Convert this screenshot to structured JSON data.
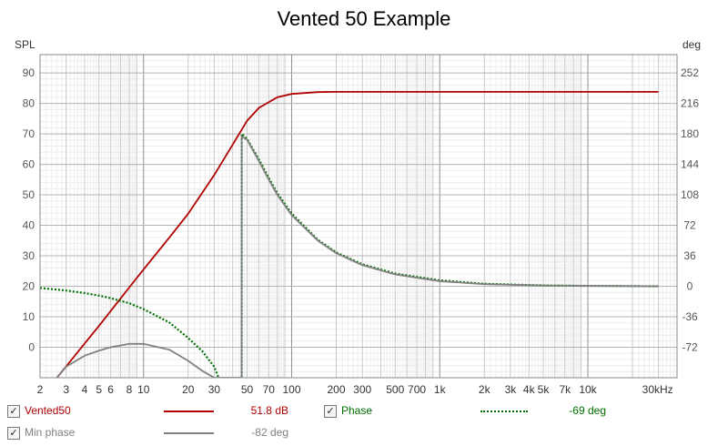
{
  "chart_data": {
    "type": "line",
    "title": "Vented 50 Example",
    "ylabel_left": "SPL",
    "ylabel_right": "deg",
    "xlabel_unit": "kHz",
    "x_scale": "log",
    "xlim": [
      2,
      40000
    ],
    "ylim_left": [
      -10,
      96
    ],
    "ylim_right": [
      -108,
      273.6
    ],
    "x_ticks": [
      {
        "v": 2,
        "t": "2"
      },
      {
        "v": 3,
        "t": "3"
      },
      {
        "v": 4,
        "t": "4"
      },
      {
        "v": 5,
        "t": "5"
      },
      {
        "v": 6,
        "t": "6"
      },
      {
        "v": 8,
        "t": "8"
      },
      {
        "v": 10,
        "t": "10"
      },
      {
        "v": 20,
        "t": "20"
      },
      {
        "v": 30,
        "t": "30"
      },
      {
        "v": 50,
        "t": "50"
      },
      {
        "v": 70,
        "t": "70"
      },
      {
        "v": 100,
        "t": "100"
      },
      {
        "v": 200,
        "t": "200"
      },
      {
        "v": 300,
        "t": "300"
      },
      {
        "v": 500,
        "t": "500"
      },
      {
        "v": 700,
        "t": "700"
      },
      {
        "v": 1000,
        "t": "1k"
      },
      {
        "v": 2000,
        "t": "2k"
      },
      {
        "v": 3000,
        "t": "3k"
      },
      {
        "v": 4000,
        "t": "4k"
      },
      {
        "v": 5000,
        "t": "5k"
      },
      {
        "v": 7000,
        "t": "7k"
      },
      {
        "v": 10000,
        "t": "10k"
      },
      {
        "v": 30000,
        "t": "30kHz"
      }
    ],
    "y_ticks_left": [
      0,
      10,
      20,
      30,
      40,
      50,
      60,
      70,
      80,
      90
    ],
    "y_ticks_right": [
      -72,
      -36,
      0,
      36,
      72,
      108,
      144,
      180,
      216,
      252
    ],
    "grid": true,
    "series": [
      {
        "name": "Vented50",
        "axis": "left",
        "color": "#b00000",
        "style": "solid",
        "x": [
          2.6,
          3,
          4,
          5,
          6,
          8,
          10,
          15,
          20,
          30,
          40,
          50,
          60,
          80,
          100,
          150,
          200,
          500,
          1000,
          5000,
          10000,
          30000
        ],
        "y": [
          -10,
          -6.3,
          1.2,
          7.0,
          11.9,
          19.6,
          25.5,
          36.1,
          43.8,
          56.5,
          66.5,
          74.3,
          78.5,
          82.0,
          83.1,
          83.7,
          83.8,
          83.8,
          83.8,
          83.8,
          83.8,
          83.8
        ]
      },
      {
        "name": "Phase",
        "axis": "right",
        "color": "#007000",
        "style": "dotted",
        "x": [
          2,
          3,
          4,
          5,
          6,
          8,
          10,
          15,
          20,
          25,
          30,
          35,
          40,
          46,
          46.01,
          50,
          60,
          70,
          80,
          100,
          150,
          200,
          300,
          500,
          1000,
          2000,
          5000,
          10000,
          30000
        ],
        "y": [
          -2,
          -5,
          -8,
          -11,
          -14,
          -20,
          -27,
          -43,
          -61,
          -77,
          -95,
          -125,
          -160,
          -185,
          180,
          174,
          150,
          128,
          110,
          86,
          55,
          40,
          26,
          15,
          7,
          3,
          1,
          0.5,
          0
        ]
      },
      {
        "name": "Min phase",
        "axis": "right",
        "color": "#808080",
        "style": "solid",
        "x": [
          2.6,
          3,
          4,
          5,
          6,
          8,
          10,
          15,
          20,
          25,
          30,
          32,
          45.9,
          46,
          50,
          60,
          70,
          80,
          100,
          150,
          200,
          300,
          500,
          1000,
          2000,
          5000,
          10000,
          30000
        ],
        "y": [
          -108,
          -95,
          -82,
          -76,
          -72,
          -68,
          -68,
          -75,
          -88,
          -100,
          -108,
          -108,
          -108,
          177,
          173,
          148,
          126,
          108,
          84,
          54,
          39,
          25,
          14,
          6,
          2.5,
          1,
          0.5,
          0
        ]
      }
    ]
  },
  "legend": [
    {
      "checked": "✓",
      "name": "Vented50",
      "value": "51.8 dB",
      "color": "#b00000"
    },
    {
      "checked": "✓",
      "name": "Phase",
      "value": "-69 deg",
      "color": "#007000"
    },
    {
      "checked": "✓",
      "name": "Min phase",
      "value": "-82 deg",
      "color": "#808080"
    }
  ]
}
